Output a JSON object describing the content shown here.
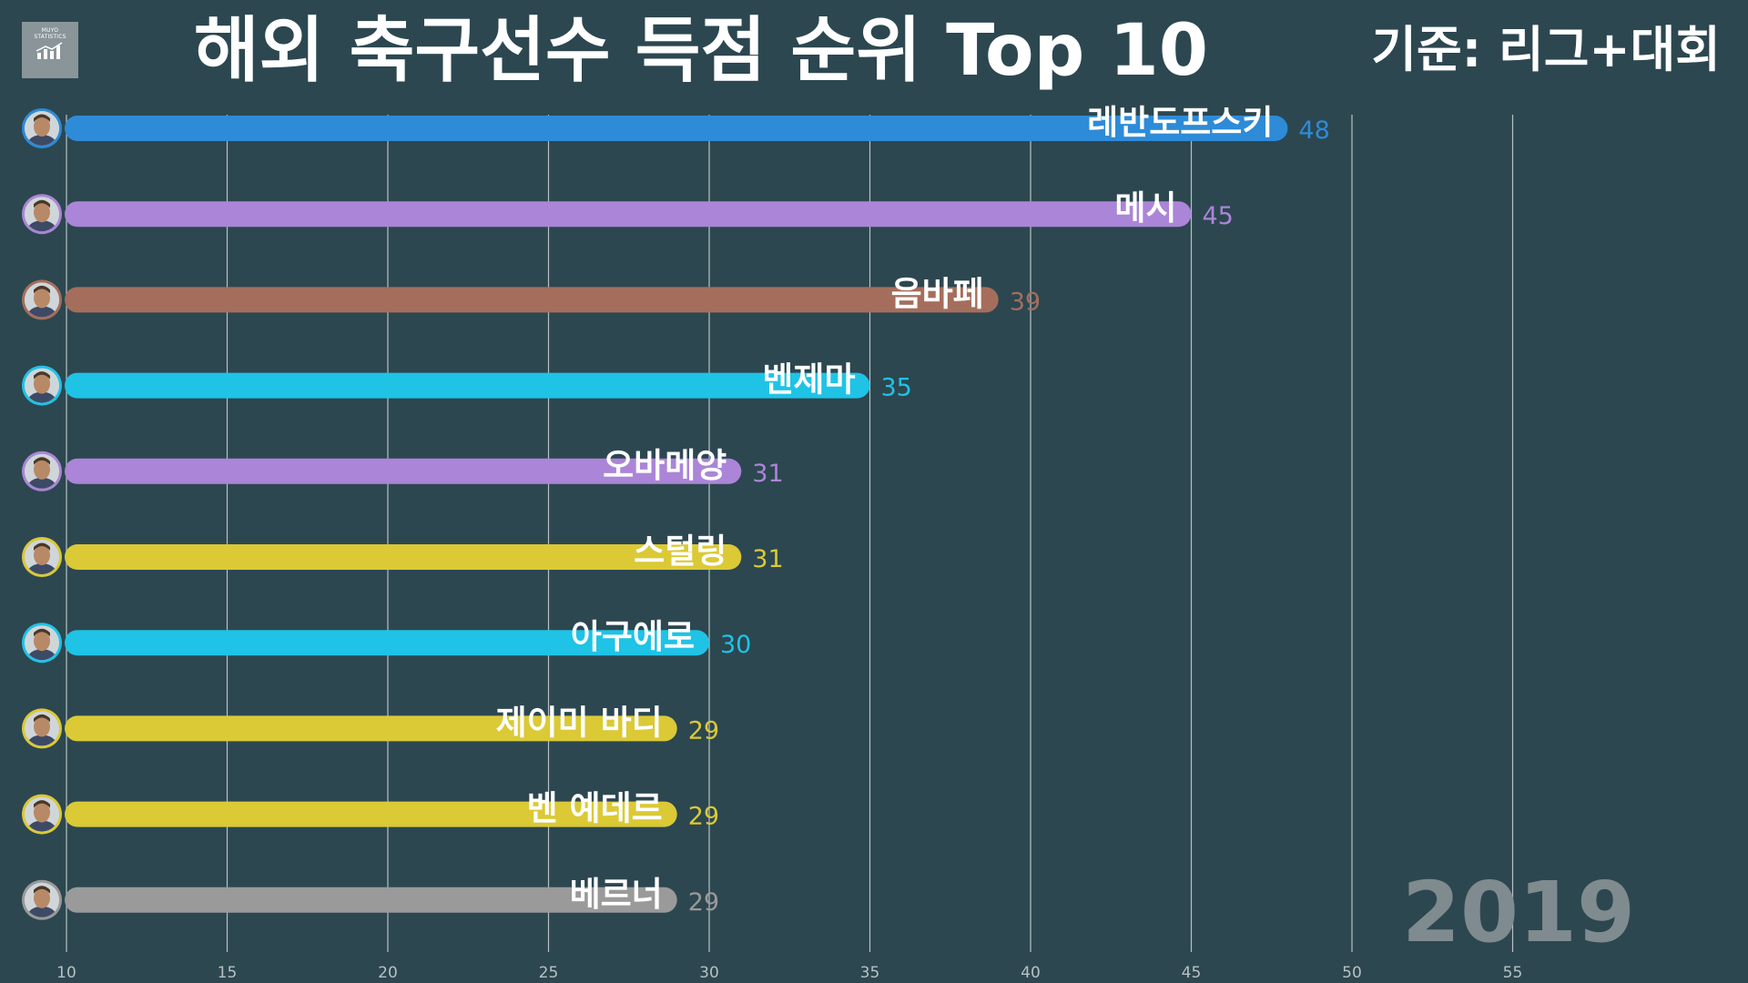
{
  "title": "해외 축구선수 득점 순위 Top 10",
  "criteria": "기준: 리그+대회",
  "logo": {
    "text": "MUYO\nSTATISTICS",
    "icon": "bar-chart-icon"
  },
  "year": "2019",
  "chart_data": {
    "type": "bar",
    "orientation": "horizontal",
    "title": "해외 축구선수 득점 순위 Top 10",
    "xlim": [
      10,
      59
    ],
    "x_ticks": [
      10,
      15,
      20,
      25,
      30,
      35,
      40,
      45,
      50,
      55
    ],
    "grid": true,
    "categories": [
      "레반도프스키",
      "메시",
      "음바페",
      "벤제마",
      "오바메양",
      "스털링",
      "아구에로",
      "제이미 바디",
      "벤 예데르",
      "베르너"
    ],
    "values": [
      48,
      45,
      39,
      35,
      31,
      31,
      30,
      29,
      29,
      29
    ],
    "colors": [
      "#2e8bd8",
      "#ab85d7",
      "#a56e5c",
      "#1fc3e6",
      "#ab85d7",
      "#dbc936",
      "#1fc3e6",
      "#dbc936",
      "#dbc936",
      "#9a9a9a"
    ],
    "avatar_icons": [
      "player-avatar-icon",
      "player-avatar-icon",
      "player-avatar-icon",
      "player-avatar-icon",
      "player-avatar-icon",
      "player-avatar-icon",
      "player-avatar-icon",
      "player-avatar-icon",
      "player-avatar-icon",
      "player-avatar-icon"
    ]
  }
}
